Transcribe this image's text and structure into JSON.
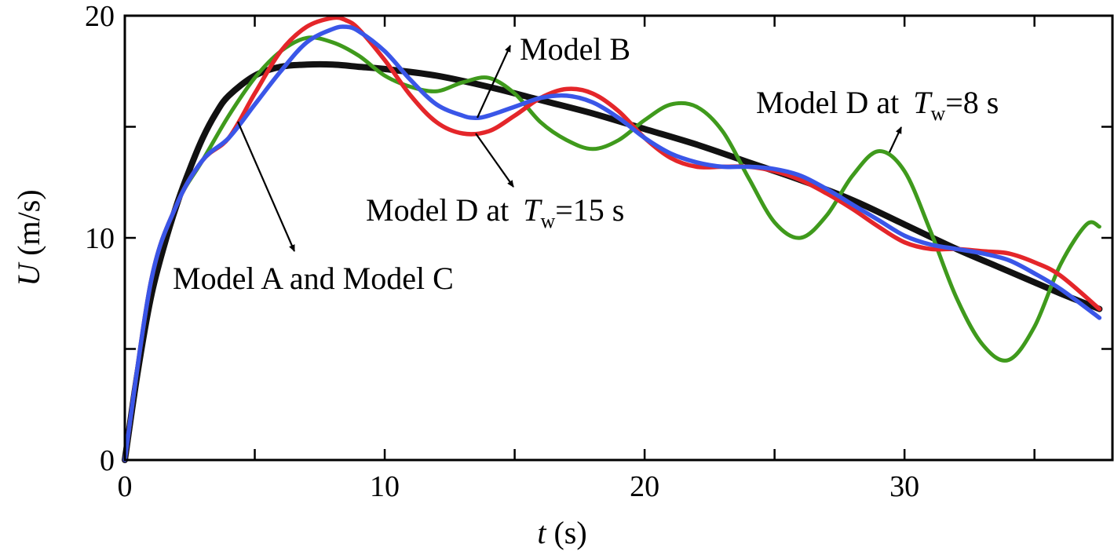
{
  "chart_data": {
    "type": "line",
    "xlabel": {
      "var": "t",
      "unit": " (s)"
    },
    "ylabel": {
      "var": "U",
      "unit": " (m/s)"
    },
    "xlim": [
      0,
      38
    ],
    "ylim": [
      0,
      20
    ],
    "xticks": [
      0,
      10,
      20,
      30
    ],
    "xticks_minor": [
      5,
      15,
      25,
      35
    ],
    "yticks": [
      0,
      10,
      20
    ],
    "yticks_minor": [
      5,
      15
    ],
    "grid": false,
    "colors": {
      "model_a_c": "#111111",
      "model_b": "#3a56e8",
      "model_d_15": "#e4262a",
      "model_d_8": "#3f9a1c"
    },
    "series": [
      {
        "key": "model_a_c",
        "x": [
          0,
          0.5,
          1,
          1.5,
          2,
          2.5,
          3,
          3.5,
          4,
          5,
          6,
          7,
          8,
          9,
          10,
          12,
          14,
          16,
          18,
          20,
          22,
          24,
          26,
          28,
          30,
          32,
          34,
          36,
          37.5
        ],
        "y": [
          0,
          4,
          7.3,
          9.6,
          11.5,
          13.1,
          14.5,
          15.6,
          16.4,
          17.3,
          17.7,
          17.8,
          17.8,
          17.7,
          17.6,
          17.3,
          16.8,
          16.2,
          15.6,
          14.9,
          14.2,
          13.4,
          12.6,
          11.7,
          10.6,
          9.5,
          8.5,
          7.5,
          6.8
        ]
      },
      {
        "key": "model_d_8",
        "x": [
          0,
          1,
          2,
          3,
          4,
          5,
          6,
          7,
          8,
          9,
          10,
          11,
          12,
          13,
          14,
          15,
          16,
          17,
          18,
          19,
          20,
          21,
          22,
          23,
          24,
          25,
          26,
          27,
          28,
          29,
          30,
          31,
          32,
          33,
          34,
          35,
          36,
          37,
          37.5
        ],
        "y": [
          0,
          8,
          11.5,
          13.5,
          15.5,
          17.2,
          18.4,
          19,
          18.8,
          18.2,
          17.3,
          16.8,
          16.6,
          17,
          17.2,
          16.5,
          15.2,
          14.4,
          14,
          14.4,
          15.3,
          16,
          15.9,
          14.8,
          12.7,
          10.7,
          10,
          11,
          12.8,
          13.9,
          13,
          10.3,
          7.3,
          5.2,
          4.5,
          6,
          8.8,
          10.6,
          10.5
        ]
      },
      {
        "key": "model_d_15",
        "x": [
          0,
          1,
          2,
          3,
          4,
          5,
          6,
          7,
          8,
          8.5,
          9,
          10,
          11,
          12,
          13,
          14,
          15,
          16,
          17,
          18,
          19,
          20,
          21,
          22,
          23,
          24,
          25,
          26,
          27,
          28,
          29,
          30,
          31,
          32,
          33,
          34,
          35,
          36,
          37.5
        ],
        "y": [
          0,
          8,
          11.5,
          13.5,
          14.5,
          16.5,
          18.4,
          19.5,
          19.9,
          19.8,
          19.4,
          18,
          16.4,
          15.2,
          14.7,
          14.8,
          15.5,
          16.3,
          16.7,
          16.5,
          15.7,
          14.5,
          13.6,
          13.2,
          13.2,
          13.2,
          13,
          12.6,
          12,
          11.3,
          10.5,
          9.8,
          9.5,
          9.5,
          9.4,
          9.3,
          8.9,
          8.3,
          6.8
        ]
      },
      {
        "key": "model_b",
        "x": [
          0,
          1,
          2,
          3,
          4,
          5,
          6,
          7,
          8,
          8.5,
          9,
          10,
          11,
          12,
          13,
          13.5,
          14,
          15,
          16,
          17,
          18,
          19,
          20,
          21,
          22,
          23,
          24,
          25,
          26,
          27,
          28,
          29,
          30,
          31,
          32,
          33,
          34,
          35,
          36,
          37.5
        ],
        "y": [
          0,
          8,
          11.5,
          13.5,
          14.5,
          16,
          17.5,
          18.8,
          19.4,
          19.5,
          19.3,
          18.4,
          17.1,
          16,
          15.5,
          15.4,
          15.5,
          15.9,
          16.3,
          16.4,
          16.1,
          15.4,
          14.5,
          13.8,
          13.4,
          13.2,
          13.2,
          13.1,
          12.8,
          12.2,
          11.5,
          10.8,
          10.1,
          9.7,
          9.5,
          9.3,
          9,
          8.4,
          7.7,
          6.4
        ]
      }
    ],
    "annotations": [
      {
        "key": "b",
        "text": "Model B"
      },
      {
        "key": "d8",
        "text": "Model D at ",
        "var": "T",
        "sub": "w",
        "rest": "=8 s"
      },
      {
        "key": "d15",
        "text": "Model D at ",
        "var": "T",
        "sub": "w",
        "rest": "=15 s"
      },
      {
        "key": "ac",
        "text": "Model A and Model C"
      }
    ]
  }
}
